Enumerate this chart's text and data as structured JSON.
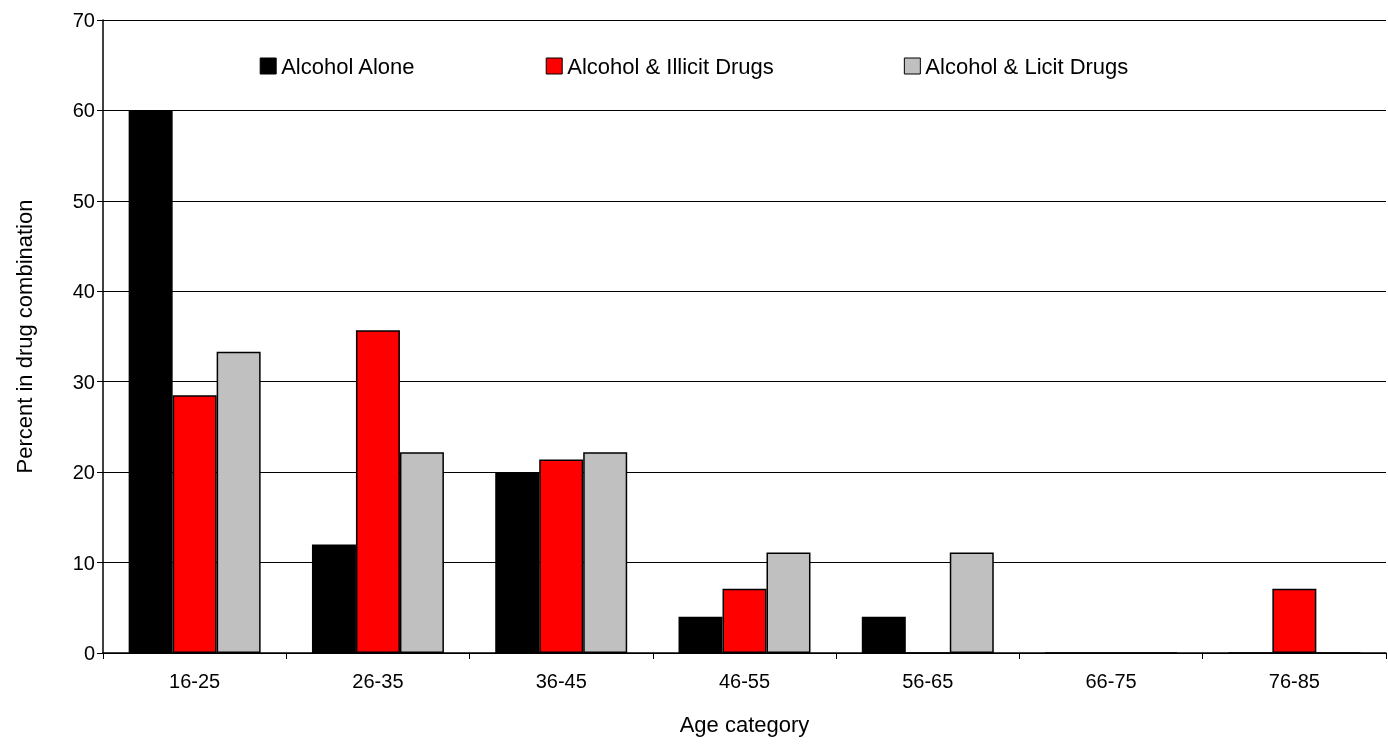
{
  "chart_data": {
    "type": "bar",
    "xlabel": "Age category",
    "ylabel": "Percent in drug combination",
    "categories": [
      "16-25",
      "26-35",
      "36-45",
      "46-55",
      "56-65",
      "66-75",
      "76-85"
    ],
    "series": [
      {
        "name": "Alcohol Alone",
        "color": "#000000",
        "values": [
          60,
          12,
          20,
          4,
          4,
          0,
          0
        ]
      },
      {
        "name": "Alcohol & Illicit Drugs",
        "color": "#ff0000",
        "values": [
          28.5,
          35.7,
          21.4,
          7.1,
          0,
          0,
          7.1
        ]
      },
      {
        "name": "Alcohol & Licit Drugs",
        "color": "#c0c0c0",
        "values": [
          33.3,
          22.2,
          22.2,
          11.1,
          11.1,
          0,
          0
        ]
      }
    ],
    "ylim": [
      0,
      70
    ],
    "yticks": [
      0,
      10,
      20,
      30,
      40,
      50,
      60,
      70
    ],
    "grid": "y",
    "legend": "top"
  }
}
